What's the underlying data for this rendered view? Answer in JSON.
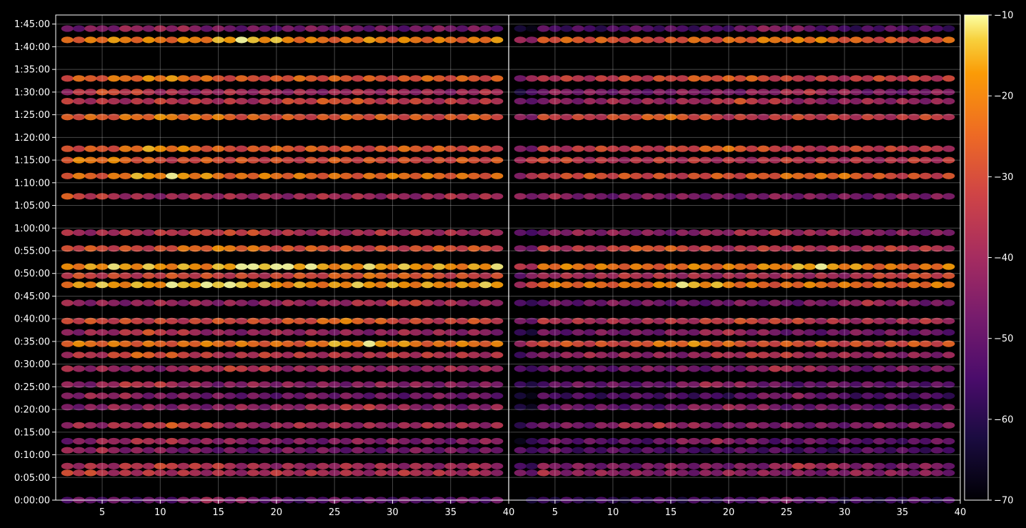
{
  "chart_data": {
    "type": "heatmap",
    "description": "Two side-by-side heatmap panels sharing a time y-axis; colour encodes signal level",
    "colormap": "inferno",
    "background_color": "#000000",
    "grid": true,
    "panels": [
      {
        "x_ticks": [
          "5",
          "10",
          "15",
          "20",
          "25",
          "30",
          "35",
          "40"
        ],
        "x_tick_values": [
          5,
          10,
          15,
          20,
          25,
          30,
          35,
          40
        ],
        "xlim": [
          1,
          40
        ],
        "max_level_x_values": [
          15,
          2,
          11,
          5,
          10,
          11,
          26,
          6,
          9,
          17,
          9,
          28,
          9,
          25,
          30,
          14,
          29,
          20,
          16
        ]
      },
      {
        "x_ticks": [
          "5",
          "10",
          "15",
          "20",
          "25",
          "30",
          "35",
          "40"
        ],
        "x_tick_values": [
          5,
          10,
          15,
          20,
          25,
          30,
          35,
          40
        ],
        "xlim": [
          1,
          40
        ],
        "max_level_x_values": [
          24,
          2,
          27,
          2,
          19,
          14,
          21,
          26,
          19,
          25,
          24,
          17,
          19,
          22,
          32,
          17,
          37,
          27,
          14
        ]
      }
    ],
    "y_ticks": [
      "0:00:00",
      "0:05:00",
      "0:10:00",
      "0:15:00",
      "0:20:00",
      "0:25:00",
      "0:30:00",
      "0:35:00",
      "0:40:00",
      "0:45:00",
      "0:50:00",
      "0:55:00",
      "1:00:00",
      "1:05:00",
      "1:10:00",
      "1:15:00",
      "1:20:00",
      "1:25:00",
      "1:30:00",
      "1:35:00",
      "1:40:00",
      "1:45:00"
    ],
    "ylim_minutes": [
      0,
      107
    ],
    "colorbar": {
      "ticks": [
        "−10",
        "−20",
        "−30",
        "−40",
        "−50",
        "−60",
        "−70"
      ],
      "tick_values": [
        -10,
        -20,
        -30,
        -40,
        -50,
        -60,
        -70
      ],
      "range": [
        -70,
        -10
      ],
      "position": "right"
    },
    "bands": [
      {
        "t": 0.0,
        "level": -52
      },
      {
        "t": 6.0,
        "level": -38
      },
      {
        "t": 7.5,
        "level": -40
      },
      {
        "t": 11.0,
        "level": -48
      },
      {
        "t": 13.0,
        "level": -45
      },
      {
        "t": 16.5,
        "level": -40
      },
      {
        "t": 20.5,
        "level": -44
      },
      {
        "t": 23.0,
        "level": -48
      },
      {
        "t": 25.5,
        "level": -44
      },
      {
        "t": 29.0,
        "level": -42
      },
      {
        "t": 32.0,
        "level": -36
      },
      {
        "t": 34.5,
        "level": -24
      },
      {
        "t": 37.0,
        "level": -42
      },
      {
        "t": 39.5,
        "level": -32
      },
      {
        "t": 43.5,
        "level": -42
      },
      {
        "t": 47.5,
        "level": -18
      },
      {
        "t": 49.5,
        "level": -32
      },
      {
        "t": 51.5,
        "level": -17
      },
      {
        "t": 55.5,
        "level": -30
      },
      {
        "t": 59.0,
        "level": -38
      },
      {
        "t": 67.0,
        "level": -40
      },
      {
        "t": 71.5,
        "level": -24
      },
      {
        "t": 75.0,
        "level": -30
      },
      {
        "t": 77.5,
        "level": -28
      },
      {
        "t": 84.5,
        "level": -28
      },
      {
        "t": 88.0,
        "level": -36
      },
      {
        "t": 90.0,
        "level": -40
      },
      {
        "t": 93.0,
        "level": -28
      },
      {
        "t": 101.5,
        "level": -22
      },
      {
        "t": 104.0,
        "level": -48
      }
    ]
  }
}
